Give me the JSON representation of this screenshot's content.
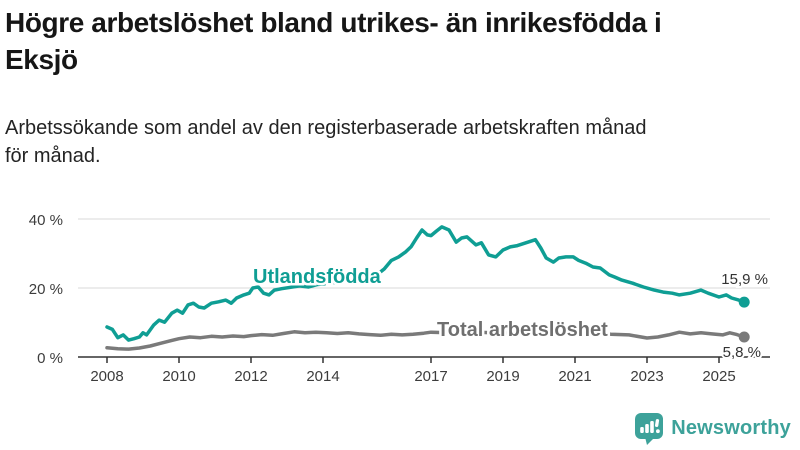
{
  "header": {
    "title": "Högre arbetslöshet bland utrikes- än inrikesfödda i\nEksjö",
    "subtitle": "Arbetssökande som andel av den registerbaserade arbetskraften månad\nför månad."
  },
  "chart_data": {
    "type": "line",
    "title": "Högre arbetslöshet bland utrikes- än inrikesfödda i Eksjö",
    "subtitle": "Arbetssökande som andel av den registerbaserade arbetskraften månad för månad.",
    "grid": "horizontal",
    "grid_color": "#d8d8d8",
    "axis_color": "#333333",
    "x_axis": {
      "tick_labels": [
        "2008",
        "2010",
        "2012",
        "2014",
        "2017",
        "2019",
        "2021",
        "2023",
        "2025"
      ],
      "tick_years": [
        2008,
        2010,
        2012,
        2014,
        2017,
        2019,
        2021,
        2023,
        2025
      ],
      "range": [
        2007.2,
        2026.4
      ]
    },
    "y_axis": {
      "tick_labels": [
        "0 %",
        "20 %",
        "40 %"
      ],
      "tick_values": [
        0,
        20,
        40
      ],
      "range": [
        0,
        42
      ],
      "unit": "%"
    },
    "series": [
      {
        "name": "Utlandsfödda",
        "color": "#0f9e94",
        "end_label": "15,9 %",
        "end_value": 15.9,
        "points": [
          [
            2008.0,
            8.7
          ],
          [
            2008.15,
            8.0
          ],
          [
            2008.3,
            5.6
          ],
          [
            2008.45,
            6.4
          ],
          [
            2008.6,
            4.9
          ],
          [
            2008.75,
            5.3
          ],
          [
            2008.9,
            5.8
          ],
          [
            2009.0,
            7.0
          ],
          [
            2009.1,
            6.4
          ],
          [
            2009.3,
            9.3
          ],
          [
            2009.45,
            10.7
          ],
          [
            2009.6,
            10.1
          ],
          [
            2009.8,
            12.7
          ],
          [
            2009.95,
            13.6
          ],
          [
            2010.1,
            12.7
          ],
          [
            2010.25,
            15.1
          ],
          [
            2010.4,
            15.6
          ],
          [
            2010.55,
            14.5
          ],
          [
            2010.7,
            14.2
          ],
          [
            2010.9,
            15.6
          ],
          [
            2011.1,
            16.0
          ],
          [
            2011.3,
            16.5
          ],
          [
            2011.45,
            15.6
          ],
          [
            2011.6,
            17.1
          ],
          [
            2011.8,
            18.0
          ],
          [
            2011.95,
            18.5
          ],
          [
            2012.05,
            20.0
          ],
          [
            2012.2,
            20.3
          ],
          [
            2012.35,
            18.5
          ],
          [
            2012.5,
            18.0
          ],
          [
            2012.65,
            19.4
          ],
          [
            2012.85,
            19.8
          ],
          [
            2013.1,
            20.2
          ],
          [
            2013.35,
            20.6
          ],
          [
            2013.6,
            20.3
          ],
          [
            2013.85,
            21.0
          ],
          [
            2014.1,
            21.3
          ],
          [
            2014.4,
            21.7
          ],
          [
            2014.7,
            22.2
          ],
          [
            2015.0,
            22.8
          ],
          [
            2015.3,
            23.4
          ],
          [
            2015.55,
            24.3
          ],
          [
            2015.7,
            25.5
          ],
          [
            2015.9,
            28.0
          ],
          [
            2016.1,
            29.0
          ],
          [
            2016.3,
            30.5
          ],
          [
            2016.45,
            32.0
          ],
          [
            2016.6,
            34.5
          ],
          [
            2016.75,
            36.8
          ],
          [
            2016.9,
            35.4
          ],
          [
            2017.0,
            35.2
          ],
          [
            2017.15,
            36.5
          ],
          [
            2017.3,
            37.7
          ],
          [
            2017.5,
            36.8
          ],
          [
            2017.7,
            33.3
          ],
          [
            2017.85,
            34.5
          ],
          [
            2018.0,
            34.8
          ],
          [
            2018.25,
            32.5
          ],
          [
            2018.4,
            33.1
          ],
          [
            2018.6,
            29.6
          ],
          [
            2018.8,
            29.0
          ],
          [
            2019.0,
            31.0
          ],
          [
            2019.2,
            31.9
          ],
          [
            2019.4,
            32.3
          ],
          [
            2019.7,
            33.3
          ],
          [
            2019.9,
            34.0
          ],
          [
            2020.05,
            31.6
          ],
          [
            2020.2,
            28.7
          ],
          [
            2020.4,
            27.5
          ],
          [
            2020.55,
            28.7
          ],
          [
            2020.75,
            29.0
          ],
          [
            2020.95,
            29.0
          ],
          [
            2021.1,
            28.0
          ],
          [
            2021.3,
            27.2
          ],
          [
            2021.5,
            26.1
          ],
          [
            2021.7,
            25.8
          ],
          [
            2021.95,
            23.8
          ],
          [
            2022.1,
            23.2
          ],
          [
            2022.3,
            22.3
          ],
          [
            2022.6,
            21.4
          ],
          [
            2022.9,
            20.3
          ],
          [
            2023.2,
            19.4
          ],
          [
            2023.45,
            18.8
          ],
          [
            2023.7,
            18.5
          ],
          [
            2023.9,
            18.0
          ],
          [
            2024.2,
            18.5
          ],
          [
            2024.5,
            19.4
          ],
          [
            2024.7,
            18.5
          ],
          [
            2025.0,
            17.4
          ],
          [
            2025.2,
            18.0
          ],
          [
            2025.35,
            17.1
          ],
          [
            2025.55,
            16.5
          ],
          [
            2025.7,
            15.9
          ]
        ]
      },
      {
        "name": "Total arbetslöshet",
        "color": "#7a7a7a",
        "end_label": "5,8 %",
        "end_value": 5.8,
        "points": [
          [
            2008.0,
            2.7
          ],
          [
            2008.3,
            2.4
          ],
          [
            2008.6,
            2.3
          ],
          [
            2008.9,
            2.6
          ],
          [
            2009.2,
            3.2
          ],
          [
            2009.5,
            4.0
          ],
          [
            2009.8,
            4.8
          ],
          [
            2010.0,
            5.3
          ],
          [
            2010.3,
            5.8
          ],
          [
            2010.6,
            5.6
          ],
          [
            2010.9,
            6.0
          ],
          [
            2011.2,
            5.8
          ],
          [
            2011.5,
            6.1
          ],
          [
            2011.8,
            5.9
          ],
          [
            2012.0,
            6.2
          ],
          [
            2012.3,
            6.5
          ],
          [
            2012.6,
            6.3
          ],
          [
            2012.9,
            6.8
          ],
          [
            2013.2,
            7.3
          ],
          [
            2013.5,
            7.0
          ],
          [
            2013.8,
            7.2
          ],
          [
            2014.1,
            7.0
          ],
          [
            2014.4,
            6.8
          ],
          [
            2014.7,
            7.0
          ],
          [
            2015.0,
            6.7
          ],
          [
            2015.3,
            6.5
          ],
          [
            2015.6,
            6.3
          ],
          [
            2015.9,
            6.6
          ],
          [
            2016.2,
            6.4
          ],
          [
            2016.5,
            6.6
          ],
          [
            2016.8,
            6.9
          ],
          [
            2017.0,
            7.2
          ],
          [
            2017.5,
            7.0
          ],
          [
            2018.0,
            7.3
          ],
          [
            2018.5,
            7.1
          ],
          [
            2019.0,
            6.9
          ],
          [
            2019.5,
            7.2
          ],
          [
            2020.0,
            7.5
          ],
          [
            2020.3,
            8.3
          ],
          [
            2020.6,
            8.0
          ],
          [
            2021.0,
            7.6
          ],
          [
            2021.5,
            7.0
          ],
          [
            2022.0,
            6.6
          ],
          [
            2022.5,
            6.4
          ],
          [
            2023.0,
            5.5
          ],
          [
            2023.3,
            5.8
          ],
          [
            2023.6,
            6.4
          ],
          [
            2023.9,
            7.2
          ],
          [
            2024.2,
            6.7
          ],
          [
            2024.5,
            7.0
          ],
          [
            2024.8,
            6.7
          ],
          [
            2025.1,
            6.4
          ],
          [
            2025.3,
            7.0
          ],
          [
            2025.5,
            6.5
          ],
          [
            2025.7,
            5.8
          ]
        ]
      }
    ]
  },
  "footer": {
    "brand": "Newsworthy",
    "brand_color": "#3da29a",
    "logo_icon": "bar-chart-speech-bubble"
  }
}
